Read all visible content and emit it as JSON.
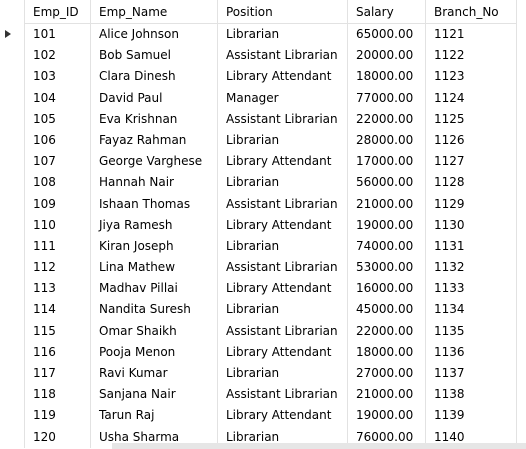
{
  "table": {
    "columns": [
      "Emp_ID",
      "Emp_Name",
      "Position",
      "Salary",
      "Branch_No"
    ],
    "current_row": 0,
    "rows": [
      [
        "101",
        "Alice Johnson",
        "Librarian",
        "65000.00",
        "1121"
      ],
      [
        "102",
        "Bob Samuel",
        "Assistant Librarian",
        "20000.00",
        "1122"
      ],
      [
        "103",
        "Clara Dinesh",
        "Library Attendant",
        "18000.00",
        "1123"
      ],
      [
        "104",
        "David Paul",
        "Manager",
        "77000.00",
        "1124"
      ],
      [
        "105",
        "Eva Krishnan",
        "Assistant Librarian",
        "22000.00",
        "1125"
      ],
      [
        "106",
        "Fayaz Rahman",
        "Librarian",
        "28000.00",
        "1126"
      ],
      [
        "107",
        "George Varghese",
        "Library Attendant",
        "17000.00",
        "1127"
      ],
      [
        "108",
        "Hannah Nair",
        "Librarian",
        "56000.00",
        "1128"
      ],
      [
        "109",
        "Ishaan Thomas",
        "Assistant Librarian",
        "21000.00",
        "1129"
      ],
      [
        "110",
        "Jiya Ramesh",
        "Library Attendant",
        "19000.00",
        "1130"
      ],
      [
        "111",
        "Kiran Joseph",
        "Librarian",
        "74000.00",
        "1131"
      ],
      [
        "112",
        "Lina Mathew",
        "Assistant Librarian",
        "53000.00",
        "1132"
      ],
      [
        "113",
        "Madhav Pillai",
        "Library Attendant",
        "16000.00",
        "1133"
      ],
      [
        "114",
        "Nandita Suresh",
        "Librarian",
        "45000.00",
        "1134"
      ],
      [
        "115",
        "Omar Shaikh",
        "Assistant Librarian",
        "22000.00",
        "1135"
      ],
      [
        "116",
        "Pooja Menon",
        "Library Attendant",
        "18000.00",
        "1136"
      ],
      [
        "117",
        "Ravi Kumar",
        "Librarian",
        "27000.00",
        "1137"
      ],
      [
        "118",
        "Sanjana Nair",
        "Assistant Librarian",
        "21000.00",
        "1138"
      ],
      [
        "119",
        "Tarun Raj",
        "Library Attendant",
        "19000.00",
        "1139"
      ],
      [
        "120",
        "Usha Sharma",
        "Librarian",
        "76000.00",
        "1140"
      ]
    ]
  },
  "icons": {
    "row_pointer": "triangle-right-icon"
  },
  "colors": {
    "grid_line": "#e2e2e2",
    "text": "#000000",
    "pointer": "#333333",
    "scrollbar": "#e6e6e6"
  }
}
